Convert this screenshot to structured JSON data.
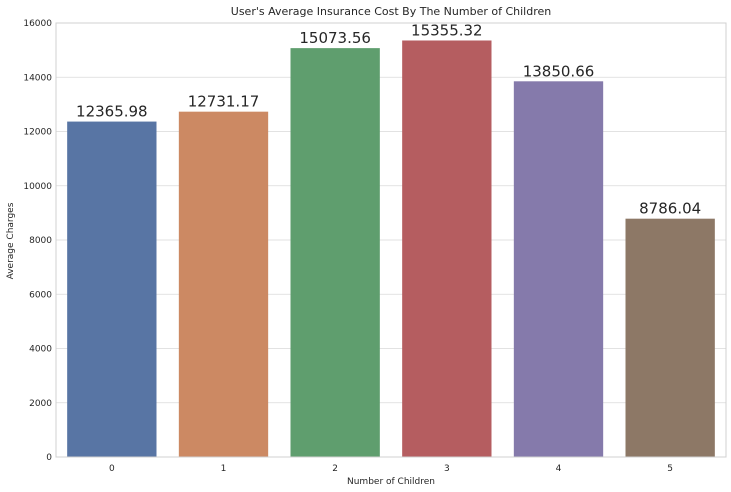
{
  "chart_data": {
    "type": "bar",
    "title": "User's Average Insurance Cost By The Number of Children",
    "xlabel": "Number of Children",
    "ylabel": "Average Charges",
    "categories": [
      "0",
      "1",
      "2",
      "3",
      "4",
      "5"
    ],
    "values": [
      12365.98,
      12731.17,
      15073.56,
      15355.32,
      13850.66,
      8786.04
    ],
    "data_labels": [
      "12365.98",
      "12731.17",
      "15073.56",
      "15355.32",
      "13850.66",
      "8786.04"
    ],
    "ylim": [
      0,
      16000
    ],
    "yticks": [
      0,
      2000,
      4000,
      6000,
      8000,
      10000,
      12000,
      14000,
      16000
    ],
    "ytick_labels": [
      "0",
      "2000",
      "4000",
      "6000",
      "8000",
      "10000",
      "12000",
      "14000",
      "16000"
    ],
    "colors": [
      "#5875a4",
      "#cc8963",
      "#5f9e6e",
      "#b55d60",
      "#857aab",
      "#8d7866"
    ],
    "grid": "horizontal",
    "legend": "none"
  }
}
